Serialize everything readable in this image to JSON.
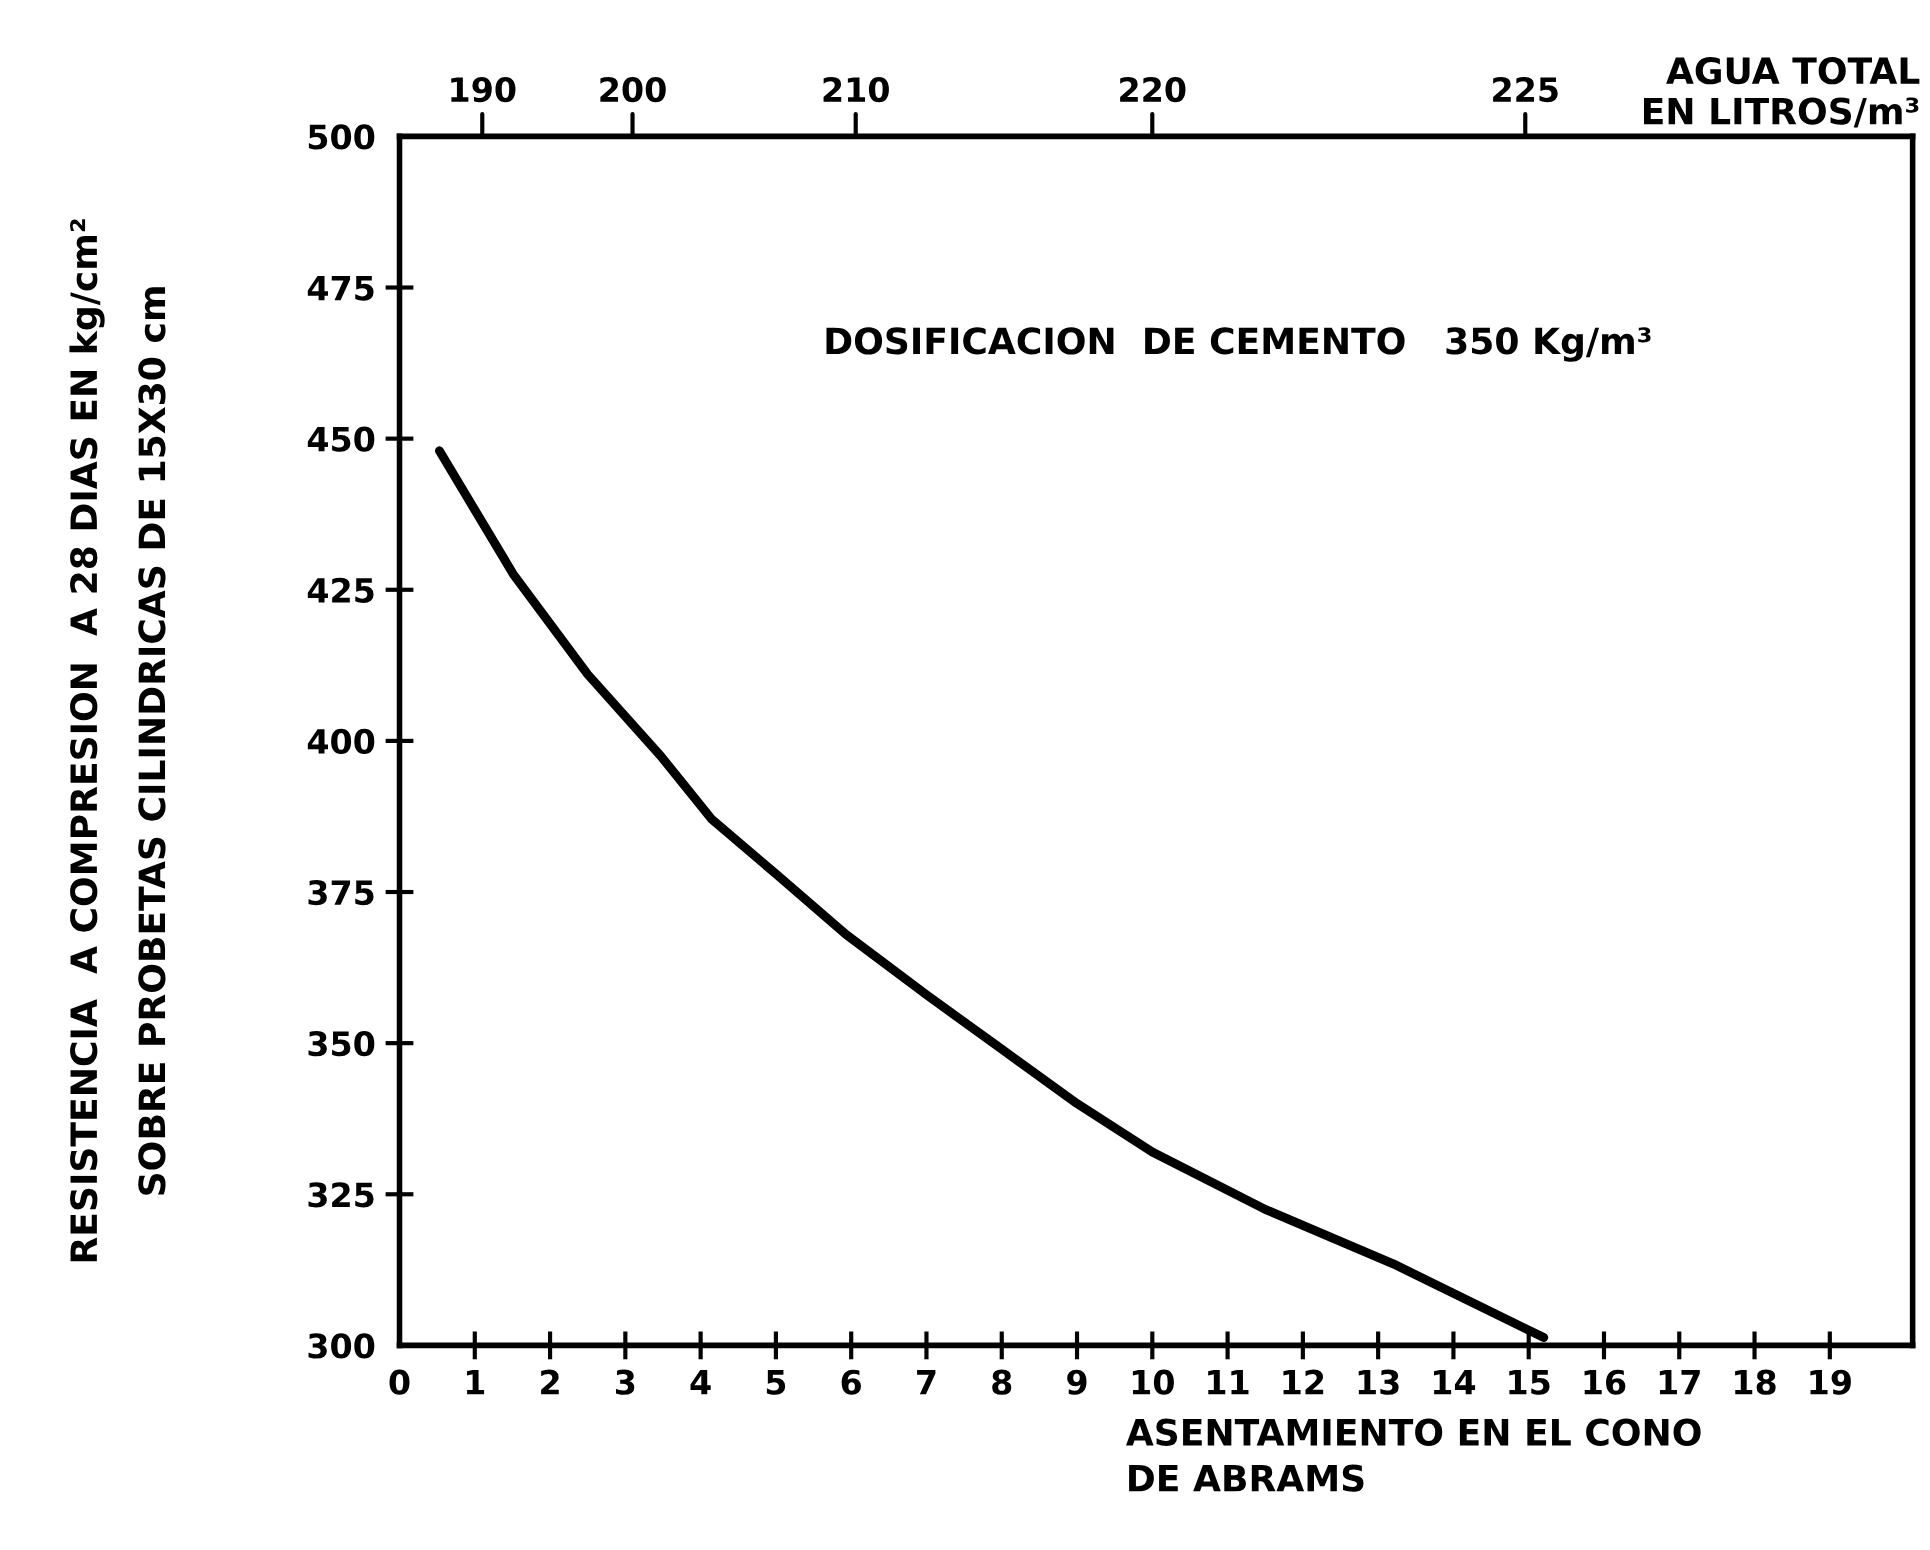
{
  "chart_data": {
    "type": "line",
    "xlabel": "ASENTAMIENTO EN EL CONO\nDE ABRAMS",
    "ylabel": "RESISTENCIA  A COMPRESION  A 28 DIAS EN kg/cm²\nSOBRE PROBETAS CILINDRICAS DE 15X30 cm",
    "annotations": [
      "DOSIFICACION  DE CEMENTO   350 Kg/m³",
      "AGUA TOTAL\nEN LITROS/m³",
      "190",
      "200",
      "210",
      "220",
      "225"
    ],
    "series": [
      {
        "color": "#000000",
        "x": [
          0.53,
          1.51,
          2.5,
          3.47,
          4.15,
          5.0,
          5.93,
          7.0,
          8.0,
          9.0,
          10.0,
          11.5,
          13.2,
          15.2
        ],
        "values": [
          448,
          427.6,
          411,
          397.5,
          387,
          378,
          368,
          358,
          349,
          340,
          332,
          322.5,
          313.5,
          301.3
        ]
      }
    ],
    "xlim": [
      0,
      20.1
    ],
    "xticks": [
      0,
      1,
      2,
      3,
      4,
      5,
      6,
      7,
      8,
      9,
      10,
      11,
      12,
      13,
      14,
      15,
      16,
      17,
      18,
      19
    ],
    "ylim": [
      300,
      500
    ],
    "yticks": [
      300,
      325,
      350,
      375,
      400,
      425,
      450,
      475,
      500
    ],
    "grid": false,
    "legend": false,
    "marker": "none",
    "line_style": "solid"
  }
}
